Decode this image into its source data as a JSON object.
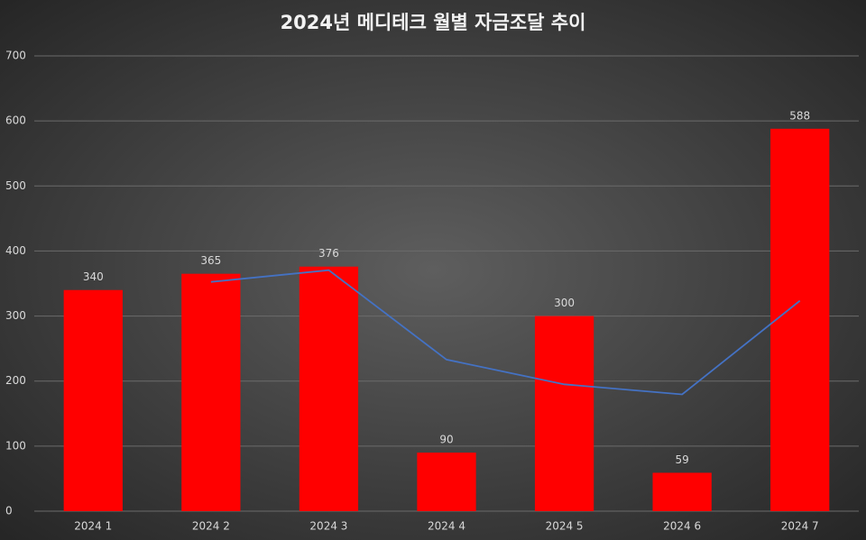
{
  "chart_data": {
    "type": "bar",
    "title": "2024년 메디테크 월별 자금조달 추이",
    "categories": [
      "2024 1",
      "2024 2",
      "2024 3",
      "2024 4",
      "2024 5",
      "2024 6",
      "2024 7"
    ],
    "series": [
      {
        "type": "bar",
        "color": "#ff0000",
        "values": [
          340,
          365,
          376,
          90,
          300,
          59,
          588
        ]
      },
      {
        "type": "line",
        "color": "#4472c4",
        "values": [
          null,
          352.5,
          370.5,
          233,
          195,
          179.5,
          323.5
        ]
      }
    ],
    "ylim": [
      0,
      700
    ],
    "yticks": [
      0,
      100,
      200,
      300,
      400,
      500,
      600,
      700
    ],
    "grid": true
  }
}
